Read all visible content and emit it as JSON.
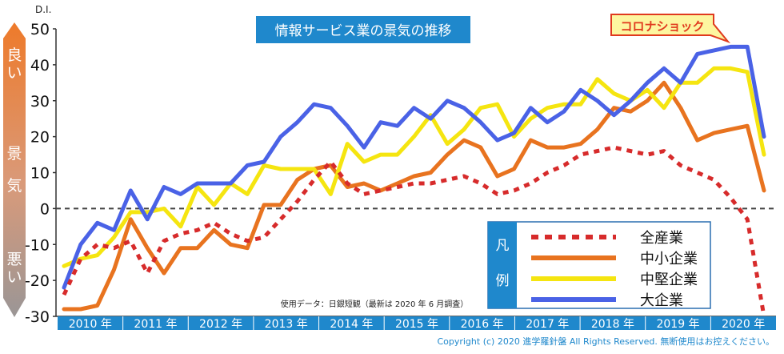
{
  "title": "情報サービス業の景気の推移",
  "corona_label": "コロナショック",
  "source_note": "使用データ：日銀短観（最新は 2020 年 6 月調査）",
  "copyright": "Copyright (c) 2020 進学羅針盤 All Rights Reserved. 無断使用はお控えください。",
  "side_labels": {
    "good": "良い",
    "mid": "景気",
    "bad": "悪い"
  },
  "legend": {
    "title": "凡例",
    "items": [
      "全産業",
      "中小企業",
      "中堅企業",
      "大企業"
    ]
  },
  "colors": {
    "all": "#d72b2b",
    "small": "#e8731f",
    "mid": "#f5e510",
    "large": "#4a62e6",
    "title_box": "#1f88cc",
    "year_bar": "#1f88cc"
  },
  "chart_data": {
    "type": "line",
    "ylabel": "D.I.",
    "ylim": [
      -30,
      50
    ],
    "yticks": [
      "50",
      "40",
      "30",
      "20",
      "10",
      "0",
      "-10",
      "-20",
      "-30"
    ],
    "years": [
      "2010 年",
      "2011 年",
      "2012 年",
      "2013 年",
      "2014 年",
      "2015 年",
      "2016 年",
      "2017 年",
      "2018 年",
      "2019 年",
      "2020 年"
    ],
    "series": [
      {
        "name": "全産業",
        "key": "all",
        "style": "dashed",
        "values": [
          -24,
          -14,
          -10,
          -11,
          -9,
          -18,
          -9,
          -7,
          -6,
          -4,
          -7,
          -9,
          -8,
          -3,
          2,
          8,
          13,
          7,
          4,
          5,
          6,
          7,
          7,
          8,
          9,
          7,
          4,
          5,
          7,
          10,
          12,
          15,
          16,
          17,
          16,
          15,
          16,
          12,
          10,
          8,
          3,
          -3,
          -30
        ]
      },
      {
        "name": "中小企業",
        "key": "small",
        "style": "solid",
        "values": [
          -28,
          -28,
          -27,
          -17,
          -3,
          -11,
          -18,
          -11,
          -11,
          -6,
          -10,
          -11,
          1,
          1,
          8,
          11,
          12,
          6,
          7,
          5,
          7,
          9,
          10,
          15,
          19,
          17,
          9,
          11,
          19,
          17,
          17,
          18,
          22,
          28,
          27,
          30,
          35,
          28,
          19,
          21,
          22,
          23,
          5
        ]
      },
      {
        "name": "中堅企業",
        "key": "mid",
        "style": "solid",
        "values": [
          -16,
          -14,
          -13,
          -8,
          -1,
          -1,
          0,
          -5,
          6,
          1,
          7,
          4,
          12,
          11,
          11,
          11,
          4,
          18,
          13,
          15,
          15,
          20,
          26,
          18,
          22,
          28,
          29,
          20,
          25,
          28,
          29,
          29,
          36,
          32,
          30,
          33,
          28,
          35,
          35,
          39,
          39,
          38,
          15
        ]
      },
      {
        "name": "大企業",
        "key": "large",
        "style": "solid",
        "values": [
          -22,
          -10,
          -4,
          -6,
          5,
          -3,
          6,
          4,
          7,
          7,
          7,
          12,
          13,
          20,
          24,
          29,
          28,
          23,
          17,
          24,
          23,
          28,
          25,
          30,
          28,
          24,
          19,
          21,
          28,
          24,
          27,
          33,
          30,
          26,
          30,
          35,
          39,
          35,
          43,
          44,
          45,
          45,
          20
        ]
      }
    ]
  }
}
